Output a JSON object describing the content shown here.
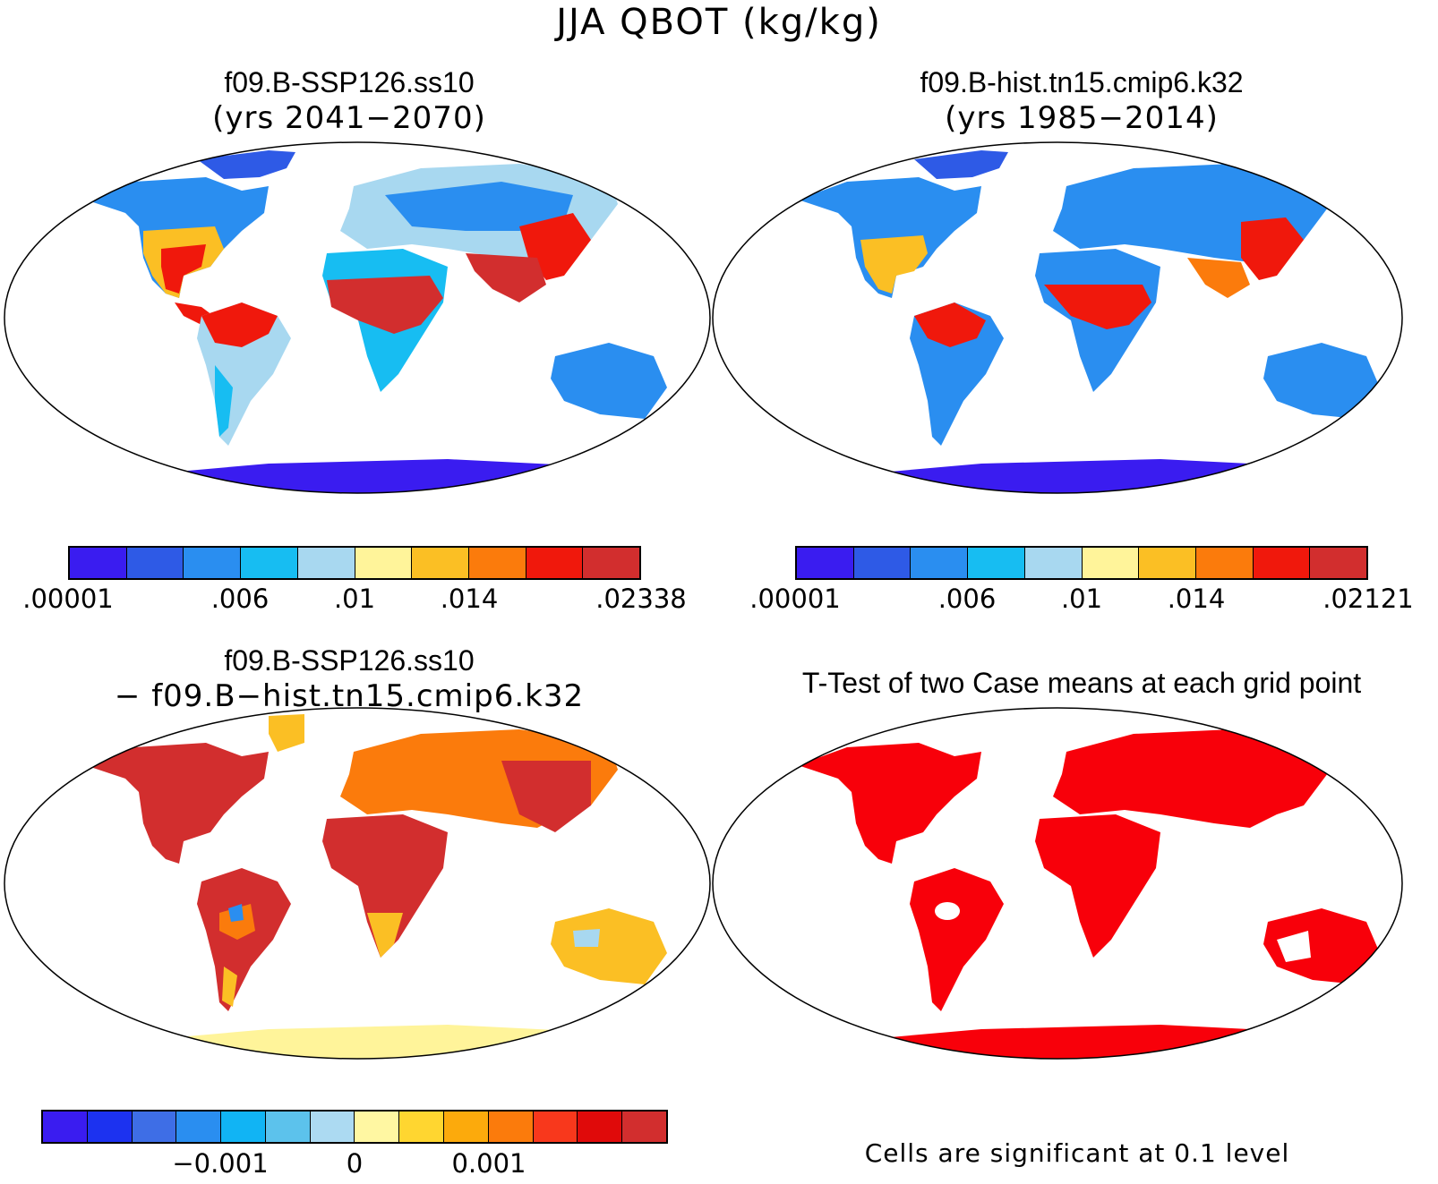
{
  "figure": {
    "title": "JJA QBOT (kg/kg)"
  },
  "panels": [
    {
      "title": "f09.B-SSP126.ss10",
      "subtitle": "(yrs 2041−2070)"
    },
    {
      "title": "f09.B-hist.tn15.cmip6.k32",
      "subtitle": "(yrs 1985−2014)"
    },
    {
      "title": "f09.B-SSP126.ss10",
      "subtitle": "− f09.B−hist.tn15.cmip6.k32"
    },
    {
      "title": "T-Test of two Case means at each grid point",
      "subtitle": ""
    }
  ],
  "colorbars": {
    "cb1": {
      "colors": [
        "#3a1cf0",
        "#2e5ae6",
        "#2a8ef0",
        "#17bdf2",
        "#a8d8f0",
        "#fff49a",
        "#fbbf24",
        "#fb7b0c",
        "#f0180c",
        "#d22e2e"
      ],
      "ticks": [
        ".00001",
        ".006",
        ".01",
        ".014",
        ".02338"
      ]
    },
    "cb2": {
      "colors": [
        "#3a1cf0",
        "#2e5ae6",
        "#2a8ef0",
        "#17bdf2",
        "#a8d8f0",
        "#fff49a",
        "#fbbf24",
        "#fb7b0c",
        "#f0180c",
        "#d22e2e"
      ],
      "ticks": [
        ".00001",
        ".006",
        ".01",
        ".014",
        ".02121"
      ]
    },
    "cb3": {
      "colors": [
        "#3a1cf0",
        "#1c32f0",
        "#3e6ee6",
        "#2a8ef0",
        "#11b4f4",
        "#5cc2ec",
        "#acdaf2",
        "#fff7a2",
        "#ffd630",
        "#fcaa0c",
        "#fb7b0c",
        "#f8381c",
        "#e00a0a",
        "#d22e2e"
      ],
      "ticks": [
        "−0.001",
        "0",
        "0.001"
      ]
    }
  },
  "ttest_note": "Cells are significant at 0.1 level"
}
